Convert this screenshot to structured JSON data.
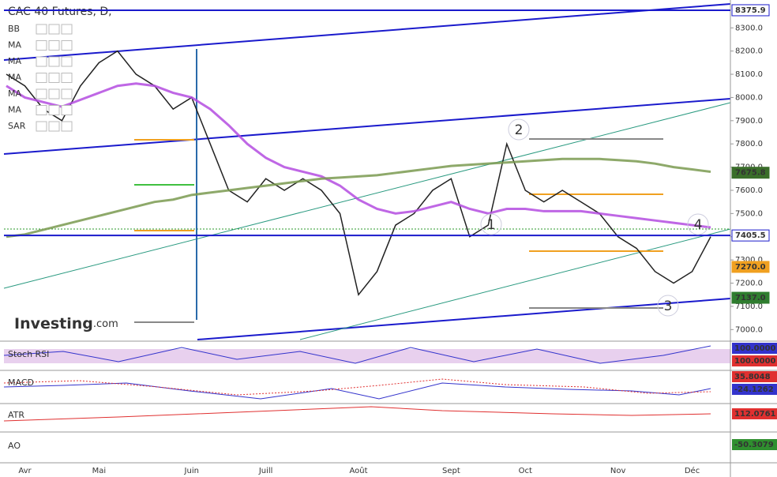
{
  "chart_data": {
    "type": "line",
    "title": "CAC 40 Futures, D,",
    "indicators": [
      "BB",
      "MA",
      "MA",
      "MA",
      "MA",
      "MA",
      "SAR"
    ],
    "categories": [
      null,
      "Avr",
      null,
      null,
      null,
      "Mai",
      null,
      null,
      null,
      null,
      "Juin",
      null,
      null,
      null,
      "Juill",
      null,
      null,
      null,
      null,
      "Août",
      null,
      null,
      null,
      null,
      "Sept",
      null,
      null,
      null,
      "Oct",
      null,
      null,
      null,
      null,
      "Nov",
      null,
      null,
      null,
      "Déc",
      null
    ],
    "series": [
      {
        "color": "#222222",
        "values": [
          8100,
          8050,
          7950,
          7900,
          8050,
          8150,
          8200,
          8100,
          8050,
          7950,
          8000,
          7800,
          7600,
          7550,
          7650,
          7600,
          7650,
          7600,
          7500,
          7150,
          7250,
          7450,
          7500,
          7600,
          7650,
          7400,
          7450,
          7800,
          7600,
          7550,
          7600,
          7550,
          7500,
          7400,
          7350,
          7250,
          7200,
          7250,
          7400
        ]
      },
      {
        "color": "#b44ce0",
        "values": [
          8050,
          8000,
          7980,
          7960,
          7990,
          8020,
          8050,
          8060,
          8050,
          8020,
          8000,
          7950,
          7880,
          7800,
          7740,
          7700,
          7680,
          7660,
          7620,
          7560,
          7520,
          7500,
          7510,
          7530,
          7550,
          7520,
          7500,
          7520,
          7520,
          7510,
          7510,
          7510,
          7500,
          7490,
          7480,
          7470,
          7460,
          7450,
          7440
        ]
      },
      {
        "color": "#7a9a50",
        "values": [
          7400,
          7410,
          7430,
          7450,
          7470,
          7490,
          7510,
          7530,
          7550,
          7560,
          7580,
          7590,
          7600,
          7610,
          7620,
          7630,
          7640,
          7650,
          7655,
          7660,
          7665,
          7675,
          7685,
          7695,
          7705,
          7710,
          7715,
          7720,
          7725,
          7730,
          7735,
          7735,
          7735,
          7730,
          7725,
          7715,
          7700,
          7690,
          7680
        ]
      }
    ],
    "ylim": [
      6950,
      8420
    ],
    "yticks": [
      {
        "value": 7000,
        "label": "7000.0"
      },
      {
        "value": 7100,
        "label": "7100.0"
      },
      {
        "value": 7200,
        "label": "7200.0"
      },
      {
        "value": 7300,
        "label": "7300.0"
      },
      {
        "value": 7400,
        "label": "7400.0"
      },
      {
        "value": 7500,
        "label": "7500.0"
      },
      {
        "value": 7600,
        "label": "7600.0"
      },
      {
        "value": 7700,
        "label": "7700.0"
      },
      {
        "value": 7800,
        "label": "7800.0"
      },
      {
        "value": 7900,
        "label": "7900.0"
      },
      {
        "value": 8000,
        "label": "8000.0"
      },
      {
        "value": 8100,
        "label": "8100.0"
      },
      {
        "value": 8200,
        "label": "8200.0"
      },
      {
        "value": 8300,
        "label": "8300.0"
      }
    ],
    "price_tags": [
      {
        "value": 8375.9,
        "label": "8375.9",
        "color": "#1a1acc",
        "line": true
      },
      {
        "value": 7675.8,
        "label": "7675.8",
        "color": "#3a6e2a"
      },
      {
        "value": 7405.5,
        "label": "7405.5",
        "color": "#1a1acc",
        "line": true
      },
      {
        "value": 7270.0,
        "label": "7270.0",
        "color": "#f0a020"
      },
      {
        "value": 7137.0,
        "label": "7137.0",
        "color": "#2f7d2f"
      }
    ],
    "waves": [
      "1",
      "2",
      "3",
      "4"
    ],
    "logo": "Investing",
    "logo_suffix": ".com",
    "panels": [
      {
        "name": "Stoch RSI",
        "readings": [
          {
            "value": 100,
            "label": "100.0000",
            "color": "#3333cc"
          },
          {
            "value": 100,
            "label": "100.0000",
            "color": "#e03030"
          }
        ]
      },
      {
        "name": "MACD",
        "readings": [
          {
            "value": 35.8048,
            "label": "35.8048",
            "color": "#e03030"
          },
          {
            "value": -24.1262,
            "label": "-24.1262",
            "color": "#3333cc"
          }
        ]
      },
      {
        "name": "ATR",
        "readings": [
          {
            "value": 112.0761,
            "label": "112.0761",
            "color": "#e03030"
          }
        ]
      },
      {
        "name": "AO",
        "readings": [
          {
            "value": -50.3079,
            "label": "-50.3079",
            "color": "#2f8f2f"
          }
        ]
      }
    ]
  }
}
